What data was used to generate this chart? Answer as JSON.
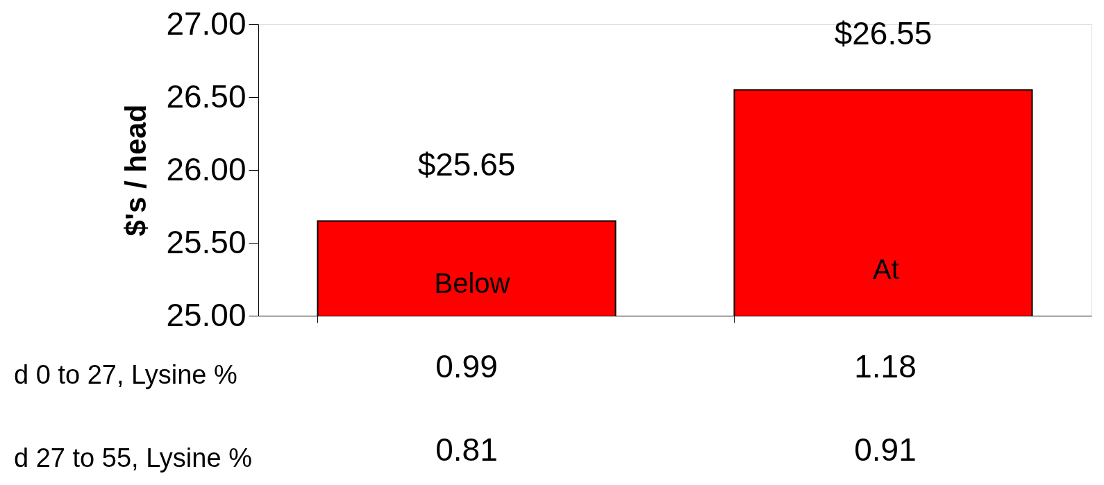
{
  "chart_data": {
    "type": "bar",
    "ylabel": "$'s / head",
    "categories": [
      null,
      null
    ],
    "series": [
      {
        "color": "#ff0000",
        "values": [
          25.65,
          26.55
        ],
        "value_labels": [
          "$25.65",
          "$26.55"
        ]
      }
    ],
    "ylim": [
      25,
      27
    ],
    "yticks": [
      {
        "value": 25,
        "label": "25.00"
      },
      {
        "value": 25.5,
        "label": "25.50"
      },
      {
        "value": 26,
        "label": "26.00"
      },
      {
        "value": 26.5,
        "label": "26.50"
      },
      {
        "value": 27,
        "label": "27.00"
      }
    ],
    "grid": false,
    "tick_labels": "y",
    "annotations": [
      "Below",
      "At",
      "d 0 to 27, Lysine %",
      "0.99",
      "1.18",
      "d 27 to 55, Lysine %",
      "0.81",
      "0.91"
    ]
  }
}
